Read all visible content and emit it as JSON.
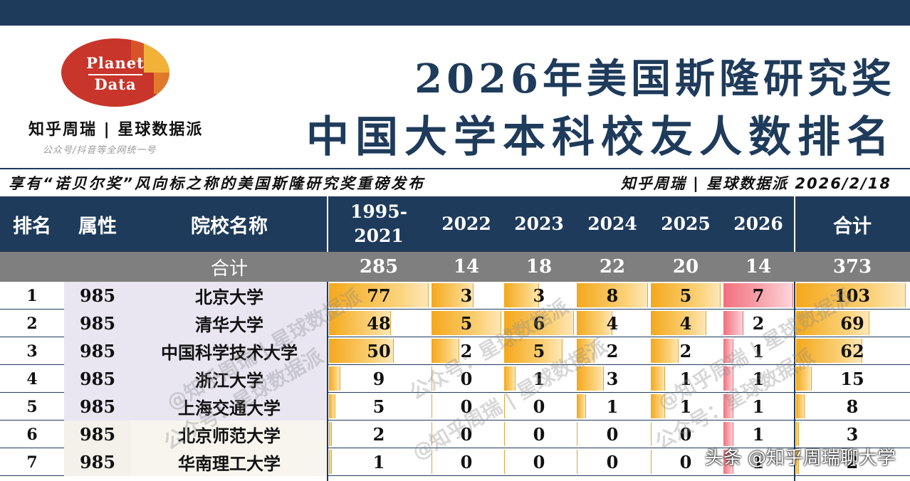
{
  "logo": {
    "line1": "Planet",
    "line2": "Data"
  },
  "brand": {
    "name": "知乎周瑞 | 星球数据派",
    "sub": "公众号/抖音等全网统一号"
  },
  "title": {
    "line1": "2026年美国斯隆研究奖",
    "line2": "中国大学本科校友人数排名"
  },
  "subtitle": {
    "left": "享有“诺贝尔奖”风向标之称的美国斯隆研究奖重磅发布",
    "right": "知乎周瑞 | 星球数据派 2026/2/18"
  },
  "watermarks": [
    "@知乎周瑞 | 星球数据派",
    "公众号：星球数据派",
    "@知乎周瑞 | 星球数据派",
    "公众号：星球数据派",
    "@知乎周瑞 | 星球数据派",
    "公众号：星球数据派"
  ],
  "footer_watermark": "头条 @知乎周瑞聊大学",
  "chart_data": {
    "type": "table",
    "title": "2026年美国斯隆研究奖 中国大学本科校友人数排名",
    "columns": [
      "排名",
      "属性",
      "院校名称",
      "1995-2021",
      "2022",
      "2023",
      "2024",
      "2025",
      "2026",
      "合计"
    ],
    "year_header_1995": {
      "top": "1995-",
      "bottom": "2021"
    },
    "totals_label": "合计",
    "totals": [
      285,
      14,
      18,
      22,
      20,
      14,
      373
    ],
    "rows": [
      {
        "rank": "1",
        "attr": "985",
        "name": "北京大学",
        "values": [
          77,
          3,
          3,
          8,
          5,
          7
        ],
        "total": 103
      },
      {
        "rank": "2",
        "attr": "985",
        "name": "清华大学",
        "values": [
          48,
          5,
          6,
          4,
          4,
          2
        ],
        "total": 69
      },
      {
        "rank": "3",
        "attr": "985",
        "name": "中国科学技术大学",
        "values": [
          50,
          2,
          5,
          2,
          2,
          1
        ],
        "total": 62
      },
      {
        "rank": "4",
        "attr": "985",
        "name": "浙江大学",
        "values": [
          9,
          0,
          1,
          3,
          1,
          1
        ],
        "total": 15
      },
      {
        "rank": "5",
        "attr": "985",
        "name": "上海交通大学",
        "values": [
          5,
          0,
          0,
          1,
          1,
          1
        ],
        "total": 8
      },
      {
        "rank": "6",
        "attr": "985",
        "name": "北京师范大学",
        "values": [
          2,
          0,
          0,
          0,
          0,
          1
        ],
        "total": 3
      },
      {
        "rank": "7",
        "attr": "985",
        "name": "华南理工大学",
        "values": [
          1,
          0,
          0,
          0,
          0,
          1
        ],
        "total": 2
      }
    ],
    "colors": {
      "header": "#1f3b5b",
      "totals_row": "#7f7f7f",
      "bar": "#f4a81c",
      "bar_2026": "#f26f7d",
      "attr_bg": "#e9e6f2"
    }
  }
}
